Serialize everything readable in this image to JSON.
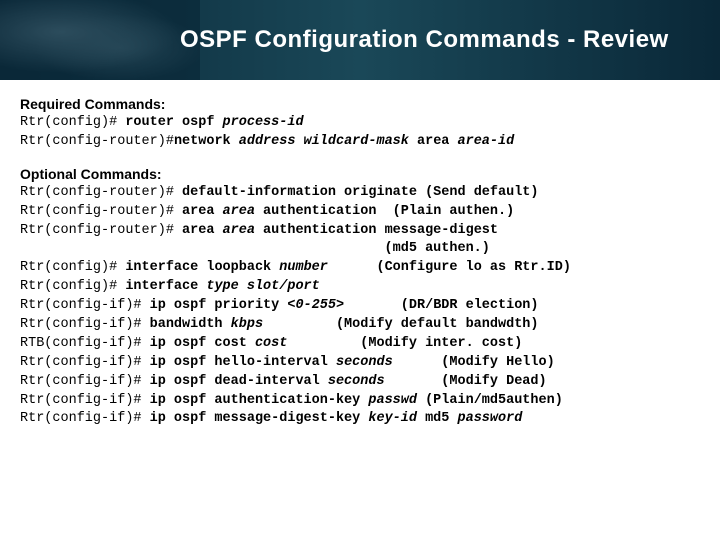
{
  "banner": {
    "title": "OSPF Configuration Commands - Review",
    "bg_color": "#0a2838",
    "title_color": "#ffffff",
    "title_fontsize": 24
  },
  "required": {
    "heading": "Required Commands:",
    "lines": [
      {
        "prompt": "Rtr(config)# ",
        "cmd": "router ospf ",
        "arg": "process-id",
        "note": ""
      },
      {
        "prompt": "Rtr(config-router)#",
        "cmd": "network ",
        "arg": "address wildcard-mask",
        "cmd2": " area ",
        "arg2": "area-id"
      }
    ]
  },
  "optional": {
    "heading": "Optional Commands:",
    "lines": [
      {
        "prompt": "Rtr(config-router)# ",
        "cmd": "default-information originate",
        "note": " (Send default)"
      },
      {
        "prompt": "Rtr(config-router)# ",
        "cmd": "area ",
        "arg": "area",
        "cmd2": " authentication",
        "note": "  (Plain authen.)"
      },
      {
        "prompt": "Rtr(config-router)# ",
        "cmd": "area ",
        "arg": "area",
        "cmd2": " authentication message-digest",
        "note": ""
      },
      {
        "prompt": "",
        "cmd": "",
        "note": "                                             (md5 authen.)"
      },
      {
        "prompt": "Rtr(config)# ",
        "cmd": "interface loopback ",
        "arg": "number",
        "note": "      (Configure lo as Rtr.ID)"
      },
      {
        "prompt": "Rtr(config)# ",
        "cmd": "interface ",
        "arg": "type slot/port",
        "note": ""
      },
      {
        "prompt": "Rtr(config-if)# ",
        "cmd": "ip ospf priority ",
        "arg": "<0-255>",
        "note": "       (DR/BDR election)"
      },
      {
        "prompt": "Rtr(config-if)# ",
        "cmd": "bandwidth ",
        "arg": "kbps",
        "note": "         (Modify default bandwdth)"
      },
      {
        "prompt": "RTB(config-if)# ",
        "cmd": "ip ospf cost ",
        "arg": "cost",
        "note": "         (Modify inter. cost)"
      },
      {
        "prompt": "Rtr(config-if)# ",
        "cmd": "ip ospf hello-interval ",
        "arg": "seconds",
        "note": "      (Modify Hello)"
      },
      {
        "prompt": "Rtr(config-if)# ",
        "cmd": "ip ospf dead-interval ",
        "arg": "seconds",
        "note": "       (Modify Dead)"
      },
      {
        "prompt": "Rtr(config-if)# ",
        "cmd": "ip ospf authentication-key ",
        "arg": "passwd",
        "note": " (Plain/md5authen)"
      },
      {
        "prompt": "Rtr(config-if)# ",
        "cmd": "ip ospf message-digest-key ",
        "arg": "key-id",
        "cmd2": " md5 ",
        "arg2": "password",
        "note": ""
      }
    ]
  },
  "style": {
    "page_bg": "#ffffff",
    "text_color": "#000000",
    "mono_font": "Courier New",
    "heading_font": "Arial",
    "heading_fontsize": 14,
    "cmd_fontsize": 13.5,
    "line_height": 1.4
  }
}
